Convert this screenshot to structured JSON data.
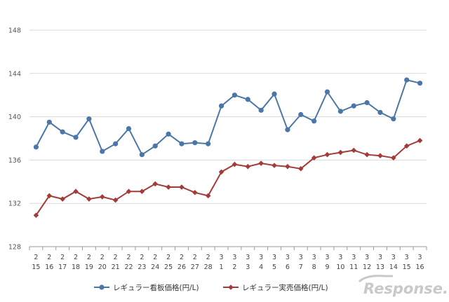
{
  "chart_data": {
    "type": "line",
    "title": "",
    "xlabel": "",
    "ylabel": "",
    "ylim": [
      128,
      148
    ],
    "y_ticks": [
      128,
      132,
      136,
      140,
      144,
      148
    ],
    "grid": "horizontal",
    "legend_position": "bottom",
    "categories": [
      [
        "2",
        "15"
      ],
      [
        "2",
        "16"
      ],
      [
        "2",
        "17"
      ],
      [
        "2",
        "18"
      ],
      [
        "2",
        "19"
      ],
      [
        "2",
        "20"
      ],
      [
        "2",
        "21"
      ],
      [
        "2",
        "22"
      ],
      [
        "2",
        "23"
      ],
      [
        "2",
        "24"
      ],
      [
        "2",
        "25"
      ],
      [
        "2",
        "26"
      ],
      [
        "2",
        "27"
      ],
      [
        "2",
        "28"
      ],
      [
        "3",
        "1"
      ],
      [
        "3",
        "2"
      ],
      [
        "3",
        "3"
      ],
      [
        "3",
        "4"
      ],
      [
        "3",
        "5"
      ],
      [
        "3",
        "6"
      ],
      [
        "3",
        "7"
      ],
      [
        "3",
        "8"
      ],
      [
        "3",
        "9"
      ],
      [
        "3",
        "10"
      ],
      [
        "3",
        "11"
      ],
      [
        "3",
        "12"
      ],
      [
        "3",
        "13"
      ],
      [
        "3",
        "14"
      ],
      [
        "3",
        "15"
      ],
      [
        "3",
        "16"
      ]
    ],
    "series": [
      {
        "name": "レギュラー看板価格(円/L)",
        "color": "#4a77a8",
        "marker": "circle",
        "values": [
          137.2,
          139.5,
          138.6,
          138.1,
          139.8,
          136.8,
          137.5,
          138.9,
          136.5,
          137.3,
          138.4,
          137.5,
          137.6,
          137.5,
          141.0,
          142.0,
          141.6,
          140.6,
          142.1,
          138.8,
          140.2,
          139.6,
          142.3,
          140.5,
          141.0,
          141.3,
          140.4,
          139.8,
          143.4,
          143.1
        ]
      },
      {
        "name": "レギュラー実売価格(円/L)",
        "color": "#a33b39",
        "marker": "diamond",
        "values": [
          130.9,
          132.7,
          132.4,
          133.1,
          132.4,
          132.6,
          132.3,
          133.1,
          133.1,
          133.8,
          133.5,
          133.5,
          133.0,
          132.7,
          134.9,
          135.6,
          135.4,
          135.7,
          135.5,
          135.4,
          135.2,
          136.2,
          136.5,
          136.7,
          136.9,
          136.5,
          136.4,
          136.2,
          137.3,
          137.8
        ]
      }
    ]
  },
  "watermark": {
    "text": "Response.",
    "color": "#c9c9c9"
  }
}
